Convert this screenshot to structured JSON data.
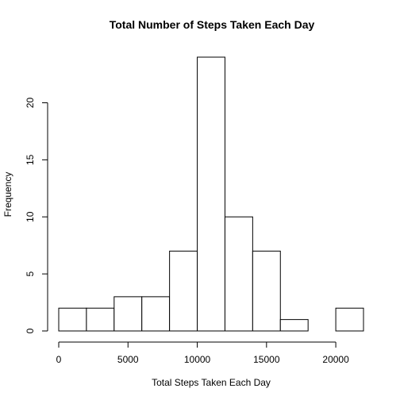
{
  "chart_data": {
    "type": "bar",
    "title": "Total Number of Steps Taken Each Day",
    "xlabel": "Total Steps Taken Each Day",
    "ylabel": "Frequency",
    "bins": [
      {
        "start": 0,
        "end": 2000,
        "count": 2
      },
      {
        "start": 2000,
        "end": 4000,
        "count": 2
      },
      {
        "start": 4000,
        "end": 6000,
        "count": 3
      },
      {
        "start": 6000,
        "end": 8000,
        "count": 3
      },
      {
        "start": 8000,
        "end": 10000,
        "count": 7
      },
      {
        "start": 10000,
        "end": 12000,
        "count": 24
      },
      {
        "start": 12000,
        "end": 14000,
        "count": 10
      },
      {
        "start": 14000,
        "end": 16000,
        "count": 7
      },
      {
        "start": 16000,
        "end": 18000,
        "count": 1
      },
      {
        "start": 18000,
        "end": 20000,
        "count": 0
      },
      {
        "start": 20000,
        "end": 22000,
        "count": 2
      }
    ],
    "xticks": [
      0,
      5000,
      10000,
      15000,
      20000
    ],
    "xtick_labels": [
      "0",
      "5000",
      "10000",
      "15000",
      "20000"
    ],
    "yticks": [
      0,
      5,
      10,
      15,
      20
    ],
    "ytick_labels": [
      "0",
      "5",
      "10",
      "15",
      "20"
    ],
    "xlim": [
      0,
      22000
    ],
    "ylim": [
      0,
      24
    ],
    "grid": false,
    "bar_fill": "#ffffff",
    "bar_stroke": "#000000"
  }
}
